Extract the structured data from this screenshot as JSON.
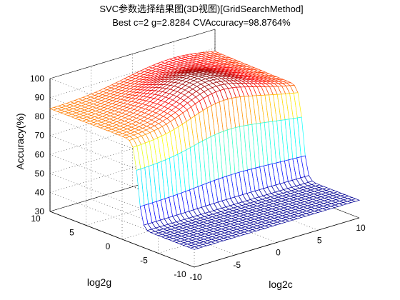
{
  "chart_data": {
    "type": "surface",
    "title": "SVC参数选择结果图(3D视图)[GridSearchMethod]",
    "subtitle": "Best c=2 g=2.8284 CVAccuracy=98.8764%",
    "xlabel": "log2c",
    "ylabel": "log2g",
    "zlabel": "Accuracy(%)",
    "x_range": [
      -10,
      10
    ],
    "y_range": [
      -10,
      10
    ],
    "z_range": [
      30,
      100
    ],
    "x_ticks": [
      "-10",
      "-5",
      "0",
      "5",
      "10"
    ],
    "y_ticks": [
      "-10",
      "-5",
      "0",
      "5",
      "10"
    ],
    "z_ticks": [
      "30",
      "40",
      "50",
      "60",
      "70",
      "80",
      "90",
      "100"
    ],
    "grid": true,
    "grid_step": 0.5,
    "best": {
      "log2c": 1,
      "log2g": 1.5,
      "accuracy": 98.8764
    },
    "plateau": {
      "log2g_min": -2,
      "accuracy": 84
    },
    "baseline_accuracy": 39.3,
    "colormap": [
      "#00008f",
      "#0000ff",
      "#0080ff",
      "#00ffff",
      "#80ff80",
      "#ffff00",
      "#ff8000",
      "#ff0000",
      "#800000"
    ]
  }
}
